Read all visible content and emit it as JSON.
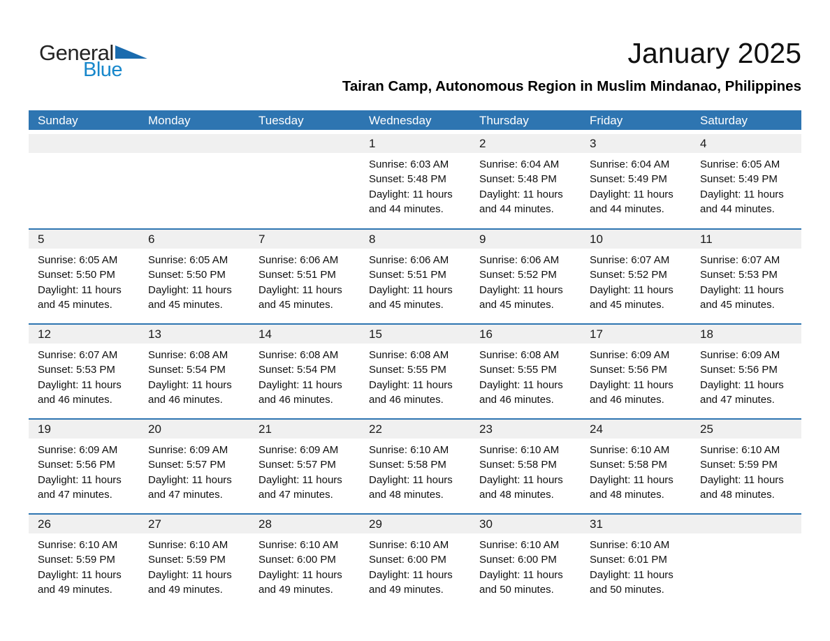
{
  "logo": {
    "general": "General",
    "blue": "Blue"
  },
  "header": {
    "title": "January 2025",
    "subtitle": "Tairan Camp, Autonomous Region in Muslim Mindanao, Philippines"
  },
  "colors": {
    "header_blue": "#2E75B1",
    "day_band_gray": "#F0F0F0",
    "logo_blue": "#1787CB",
    "logo_triangle_blue": "#1A6BAE"
  },
  "weekdays": [
    "Sunday",
    "Monday",
    "Tuesday",
    "Wednesday",
    "Thursday",
    "Friday",
    "Saturday"
  ],
  "weeks": [
    [
      null,
      null,
      null,
      {
        "day": "1",
        "sunrise": "Sunrise: 6:03 AM",
        "sunset": "Sunset: 5:48 PM",
        "daylight": "Daylight: 11 hours and 44 minutes."
      },
      {
        "day": "2",
        "sunrise": "Sunrise: 6:04 AM",
        "sunset": "Sunset: 5:48 PM",
        "daylight": "Daylight: 11 hours and 44 minutes."
      },
      {
        "day": "3",
        "sunrise": "Sunrise: 6:04 AM",
        "sunset": "Sunset: 5:49 PM",
        "daylight": "Daylight: 11 hours and 44 minutes."
      },
      {
        "day": "4",
        "sunrise": "Sunrise: 6:05 AM",
        "sunset": "Sunset: 5:49 PM",
        "daylight": "Daylight: 11 hours and 44 minutes."
      }
    ],
    [
      {
        "day": "5",
        "sunrise": "Sunrise: 6:05 AM",
        "sunset": "Sunset: 5:50 PM",
        "daylight": "Daylight: 11 hours and 45 minutes."
      },
      {
        "day": "6",
        "sunrise": "Sunrise: 6:05 AM",
        "sunset": "Sunset: 5:50 PM",
        "daylight": "Daylight: 11 hours and 45 minutes."
      },
      {
        "day": "7",
        "sunrise": "Sunrise: 6:06 AM",
        "sunset": "Sunset: 5:51 PM",
        "daylight": "Daylight: 11 hours and 45 minutes."
      },
      {
        "day": "8",
        "sunrise": "Sunrise: 6:06 AM",
        "sunset": "Sunset: 5:51 PM",
        "daylight": "Daylight: 11 hours and 45 minutes."
      },
      {
        "day": "9",
        "sunrise": "Sunrise: 6:06 AM",
        "sunset": "Sunset: 5:52 PM",
        "daylight": "Daylight: 11 hours and 45 minutes."
      },
      {
        "day": "10",
        "sunrise": "Sunrise: 6:07 AM",
        "sunset": "Sunset: 5:52 PM",
        "daylight": "Daylight: 11 hours and 45 minutes."
      },
      {
        "day": "11",
        "sunrise": "Sunrise: 6:07 AM",
        "sunset": "Sunset: 5:53 PM",
        "daylight": "Daylight: 11 hours and 45 minutes."
      }
    ],
    [
      {
        "day": "12",
        "sunrise": "Sunrise: 6:07 AM",
        "sunset": "Sunset: 5:53 PM",
        "daylight": "Daylight: 11 hours and 46 minutes."
      },
      {
        "day": "13",
        "sunrise": "Sunrise: 6:08 AM",
        "sunset": "Sunset: 5:54 PM",
        "daylight": "Daylight: 11 hours and 46 minutes."
      },
      {
        "day": "14",
        "sunrise": "Sunrise: 6:08 AM",
        "sunset": "Sunset: 5:54 PM",
        "daylight": "Daylight: 11 hours and 46 minutes."
      },
      {
        "day": "15",
        "sunrise": "Sunrise: 6:08 AM",
        "sunset": "Sunset: 5:55 PM",
        "daylight": "Daylight: 11 hours and 46 minutes."
      },
      {
        "day": "16",
        "sunrise": "Sunrise: 6:08 AM",
        "sunset": "Sunset: 5:55 PM",
        "daylight": "Daylight: 11 hours and 46 minutes."
      },
      {
        "day": "17",
        "sunrise": "Sunrise: 6:09 AM",
        "sunset": "Sunset: 5:56 PM",
        "daylight": "Daylight: 11 hours and 46 minutes."
      },
      {
        "day": "18",
        "sunrise": "Sunrise: 6:09 AM",
        "sunset": "Sunset: 5:56 PM",
        "daylight": "Daylight: 11 hours and 47 minutes."
      }
    ],
    [
      {
        "day": "19",
        "sunrise": "Sunrise: 6:09 AM",
        "sunset": "Sunset: 5:56 PM",
        "daylight": "Daylight: 11 hours and 47 minutes."
      },
      {
        "day": "20",
        "sunrise": "Sunrise: 6:09 AM",
        "sunset": "Sunset: 5:57 PM",
        "daylight": "Daylight: 11 hours and 47 minutes."
      },
      {
        "day": "21",
        "sunrise": "Sunrise: 6:09 AM",
        "sunset": "Sunset: 5:57 PM",
        "daylight": "Daylight: 11 hours and 47 minutes."
      },
      {
        "day": "22",
        "sunrise": "Sunrise: 6:10 AM",
        "sunset": "Sunset: 5:58 PM",
        "daylight": "Daylight: 11 hours and 48 minutes."
      },
      {
        "day": "23",
        "sunrise": "Sunrise: 6:10 AM",
        "sunset": "Sunset: 5:58 PM",
        "daylight": "Daylight: 11 hours and 48 minutes."
      },
      {
        "day": "24",
        "sunrise": "Sunrise: 6:10 AM",
        "sunset": "Sunset: 5:58 PM",
        "daylight": "Daylight: 11 hours and 48 minutes."
      },
      {
        "day": "25",
        "sunrise": "Sunrise: 6:10 AM",
        "sunset": "Sunset: 5:59 PM",
        "daylight": "Daylight: 11 hours and 48 minutes."
      }
    ],
    [
      {
        "day": "26",
        "sunrise": "Sunrise: 6:10 AM",
        "sunset": "Sunset: 5:59 PM",
        "daylight": "Daylight: 11 hours and 49 minutes."
      },
      {
        "day": "27",
        "sunrise": "Sunrise: 6:10 AM",
        "sunset": "Sunset: 5:59 PM",
        "daylight": "Daylight: 11 hours and 49 minutes."
      },
      {
        "day": "28",
        "sunrise": "Sunrise: 6:10 AM",
        "sunset": "Sunset: 6:00 PM",
        "daylight": "Daylight: 11 hours and 49 minutes."
      },
      {
        "day": "29",
        "sunrise": "Sunrise: 6:10 AM",
        "sunset": "Sunset: 6:00 PM",
        "daylight": "Daylight: 11 hours and 49 minutes."
      },
      {
        "day": "30",
        "sunrise": "Sunrise: 6:10 AM",
        "sunset": "Sunset: 6:00 PM",
        "daylight": "Daylight: 11 hours and 50 minutes."
      },
      {
        "day": "31",
        "sunrise": "Sunrise: 6:10 AM",
        "sunset": "Sunset: 6:01 PM",
        "daylight": "Daylight: 11 hours and 50 minutes."
      },
      null
    ]
  ]
}
